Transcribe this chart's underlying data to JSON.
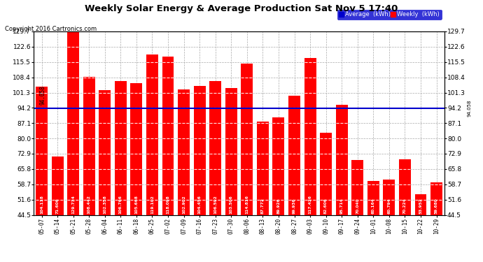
{
  "title": "Weekly Solar Energy & Average Production Sat Nov 5 17:40",
  "copyright": "Copyright 2016 Cartronics.com",
  "categories": [
    "05-07",
    "05-14",
    "05-21",
    "05-28",
    "06-04",
    "06-11",
    "06-18",
    "06-25",
    "07-02",
    "07-09",
    "07-16",
    "07-23",
    "07-30",
    "08-06",
    "08-13",
    "08-20",
    "08-27",
    "09-03",
    "09-10",
    "09-17",
    "09-24",
    "10-01",
    "10-08",
    "10-15",
    "10-22",
    "10-29"
  ],
  "values": [
    104.118,
    71.606,
    129.734,
    108.442,
    102.358,
    106.766,
    105.668,
    119.102,
    118.098,
    102.902,
    104.456,
    106.592,
    103.506,
    114.816,
    87.772,
    89.926,
    99.936,
    117.426,
    82.606,
    95.714,
    70.04,
    60.164,
    60.794,
    70.224,
    53.952,
    59.68
  ],
  "average": 94.058,
  "bar_color": "#ff0000",
  "avg_line_color": "#0000cc",
  "background_color": "#ffffff",
  "grid_color": "#aaaaaa",
  "yticks": [
    44.5,
    51.6,
    58.7,
    65.8,
    72.9,
    80.0,
    87.1,
    94.2,
    101.3,
    108.4,
    115.5,
    122.6,
    129.7
  ],
  "ymin": 44.5,
  "ymax": 129.7,
  "legend_avg_label": "Average  (kWh)",
  "legend_weekly_label": "Weekly  (kWh)",
  "avg_label": "94.058"
}
